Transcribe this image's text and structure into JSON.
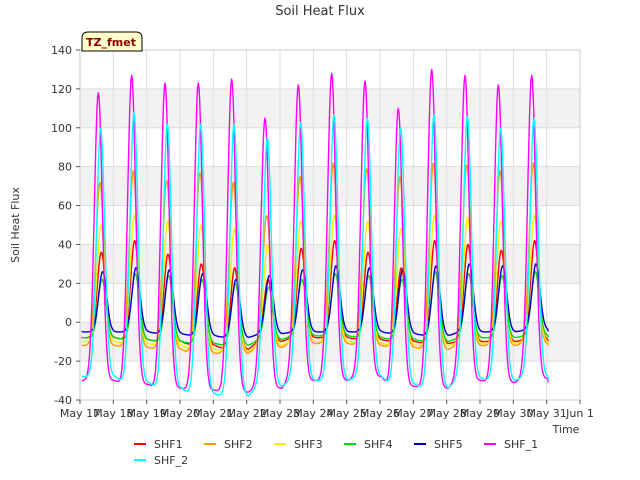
{
  "chart_data": {
    "type": "line",
    "title": "Soil Heat Flux",
    "xlabel": "Time",
    "ylabel": "Soil Heat Flux",
    "annotation": "TZ_fmet",
    "ylim": [
      -40,
      140
    ],
    "y_ticks": [
      -40,
      -20,
      0,
      20,
      40,
      60,
      80,
      100,
      120,
      140
    ],
    "xlim": [
      0,
      15
    ],
    "x_ticks": [
      0,
      1,
      2,
      3,
      4,
      5,
      6,
      7,
      8,
      9,
      10,
      11,
      12,
      13,
      14,
      15
    ],
    "x_tick_labels": [
      "May 17",
      "May 18",
      "May 19",
      "May 20",
      "May 21",
      "May 22",
      "May 23",
      "May 24",
      "May 25",
      "May 26",
      "May 27",
      "May 28",
      "May 29",
      "May 30",
      "May 31",
      "Jun 1"
    ],
    "grid": true,
    "legend_position": "bottom",
    "days": [
      "May 17",
      "May 18",
      "May 19",
      "May 20",
      "May 21",
      "May 22",
      "May 23",
      "May 24",
      "May 25",
      "May 26",
      "May 27",
      "May 28",
      "May 29",
      "May 30"
    ],
    "series_note": "Daily peak and minimum values estimated from the chart for each series; curves are diurnal cycles between these values.",
    "series": [
      {
        "name": "SHF1",
        "color": "#ff0000",
        "lag": 0.04,
        "max": [
          36,
          42,
          35,
          30,
          28,
          22,
          38,
          42,
          36,
          28,
          42,
          40,
          37,
          42
        ],
        "min": [
          -8,
          -9,
          -10,
          -12,
          -14,
          -10,
          -8,
          -8,
          -9,
          -10,
          -11,
          -10,
          -10,
          -9
        ]
      },
      {
        "name": "SHF2",
        "color": "#ff9900",
        "lag": 0.0,
        "max": [
          72,
          78,
          73,
          77,
          72,
          55,
          75,
          82,
          79,
          75,
          82,
          81,
          78,
          82
        ],
        "min": [
          -12,
          -13,
          -14,
          -16,
          -16,
          -13,
          -11,
          -11,
          -12,
          -13,
          -14,
          -12,
          -12,
          -11
        ]
      },
      {
        "name": "SHF3",
        "color": "#ffee00",
        "lag": 0.03,
        "max": [
          50,
          55,
          52,
          50,
          48,
          40,
          52,
          55,
          52,
          48,
          55,
          54,
          52,
          55
        ],
        "min": [
          -10,
          -11,
          -12,
          -14,
          -15,
          -12,
          -10,
          -10,
          -11,
          -12,
          -12,
          -11,
          -11,
          -10
        ]
      },
      {
        "name": "SHF4",
        "color": "#00dd00",
        "lag": 0.06,
        "max": [
          22,
          25,
          24,
          22,
          20,
          18,
          22,
          25,
          24,
          22,
          26,
          25,
          24,
          26
        ],
        "min": [
          -8,
          -9,
          -10,
          -11,
          -12,
          -9,
          -7,
          -7,
          -8,
          -9,
          -10,
          -8,
          -8,
          -7
        ]
      },
      {
        "name": "SHF5",
        "color": "#0000cc",
        "lag": 0.08,
        "max": [
          26,
          28,
          27,
          25,
          22,
          24,
          27,
          29,
          28,
          27,
          29,
          30,
          29,
          30
        ],
        "min": [
          -5,
          -5,
          -6,
          -7,
          -8,
          -6,
          -5,
          -5,
          -5,
          -6,
          -7,
          -5,
          -5,
          -4
        ]
      },
      {
        "name": "SHF_1",
        "color": "#ff00ff",
        "lag": -0.05,
        "max": [
          118,
          127,
          123,
          123,
          125,
          105,
          122,
          128,
          124,
          110,
          130,
          127,
          122,
          127
        ],
        "min": [
          -30,
          -32,
          -34,
          -35,
          -36,
          -34,
          -30,
          -30,
          -28,
          -33,
          -34,
          -30,
          -31,
          -29
        ]
      },
      {
        "name": "SHF_2",
        "color": "#00ffff",
        "lag": 0.02,
        "max": [
          100,
          108,
          102,
          102,
          102,
          95,
          103,
          107,
          105,
          100,
          107,
          106,
          100,
          105
        ],
        "min": [
          -28,
          -31,
          -34,
          -37,
          -38,
          -33,
          -30,
          -30,
          -28,
          -32,
          -34,
          -29,
          -30,
          -28
        ]
      }
    ]
  }
}
